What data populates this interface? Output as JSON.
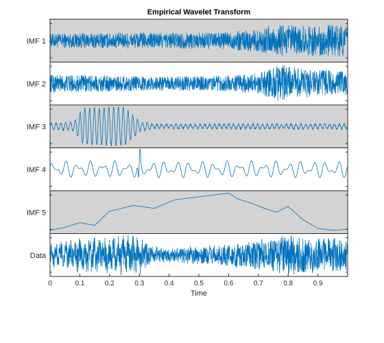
{
  "chart_data": {
    "type": "line",
    "title": "Empirical Wavelet Transform",
    "xlabel": "Time",
    "xlim": [
      0,
      1
    ],
    "x_ticks": [
      "0",
      "0.1",
      "0.2",
      "0.3",
      "0.4",
      "0.5",
      "0.6",
      "0.7",
      "0.8",
      "0.9"
    ],
    "x_tick_values": [
      0,
      0.1,
      0.2,
      0.3,
      0.4,
      0.5,
      0.6,
      0.7,
      0.8,
      0.9
    ],
    "line_color": "#0072BD",
    "panel_colors": {
      "shaded": "#d3d3d3",
      "plain": "#ffffff"
    },
    "panels": [
      {
        "label": "IMF 1",
        "shaded": true,
        "description": "high-frequency noise, larger amplitude after t=0.7",
        "envelope": [
          [
            0,
            0.35
          ],
          [
            0.3,
            0.4
          ],
          [
            0.55,
            0.4
          ],
          [
            0.7,
            0.55
          ],
          [
            0.75,
            0.85
          ],
          [
            0.85,
            0.75
          ],
          [
            1,
            0.8
          ]
        ]
      },
      {
        "label": "IMF 2",
        "shaded": false,
        "description": "mid-high frequency, burst between 0.75 and 0.85",
        "envelope": [
          [
            0,
            0.45
          ],
          [
            0.3,
            0.35
          ],
          [
            0.55,
            0.35
          ],
          [
            0.7,
            0.5
          ],
          [
            0.78,
            0.95
          ],
          [
            0.85,
            0.7
          ],
          [
            1,
            0.6
          ]
        ]
      },
      {
        "label": "IMF 3",
        "shaded": true,
        "description": "oscillation burst between t=0.1 and t=0.3",
        "envelope": [
          [
            0,
            0.15
          ],
          [
            0.08,
            0.2
          ],
          [
            0.11,
            0.9
          ],
          [
            0.25,
            0.95
          ],
          [
            0.3,
            0.25
          ],
          [
            0.35,
            0.1
          ],
          [
            1,
            0.12
          ]
        ]
      },
      {
        "label": "IMF 4",
        "shaded": false,
        "description": "low frequency oscillation with spike near t=0.3",
        "envelope": [
          [
            0,
            0.35
          ],
          [
            1,
            0.35
          ]
        ],
        "spike_t": 0.3
      },
      {
        "label": "IMF 5",
        "shaded": true,
        "description": "slow trend",
        "trend": [
          [
            0,
            -0.95
          ],
          [
            0.05,
            -0.8
          ],
          [
            0.1,
            -0.55
          ],
          [
            0.15,
            -0.7
          ],
          [
            0.2,
            0.05
          ],
          [
            0.28,
            0.35
          ],
          [
            0.35,
            0.2
          ],
          [
            0.42,
            0.65
          ],
          [
            0.5,
            0.8
          ],
          [
            0.6,
            1.0
          ],
          [
            0.63,
            0.7
          ],
          [
            0.68,
            0.45
          ],
          [
            0.72,
            0.2
          ],
          [
            0.76,
            0.0
          ],
          [
            0.8,
            0.3
          ],
          [
            0.85,
            -0.4
          ],
          [
            0.9,
            -0.85
          ],
          [
            0.95,
            -0.95
          ],
          [
            1,
            -0.9
          ]
        ]
      },
      {
        "label": "Data",
        "shaded": false,
        "description": "original signal",
        "envelope": [
          [
            0,
            0.45
          ],
          [
            0.1,
            0.65
          ],
          [
            0.3,
            0.8
          ],
          [
            0.35,
            0.35
          ],
          [
            0.55,
            0.4
          ],
          [
            0.7,
            0.7
          ],
          [
            0.8,
            0.95
          ],
          [
            1,
            0.75
          ]
        ]
      }
    ]
  }
}
